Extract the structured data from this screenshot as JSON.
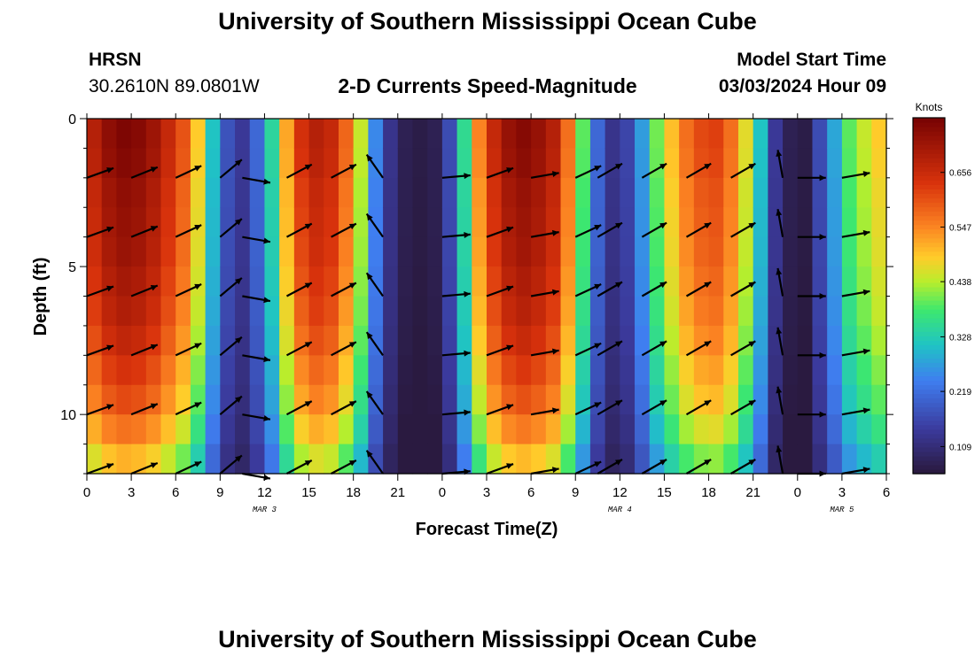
{
  "header": {
    "title": "University of Southern Mississippi Ocean Cube",
    "station": "HRSN",
    "coords": "30.2610N  89.0801W",
    "subtitle": "2-D Currents Speed-Magnitude",
    "start_label": "Model Start Time",
    "start_value": "03/03/2024 Hour 09"
  },
  "footer": {
    "title": "University of Southern Mississippi Ocean Cube"
  },
  "chart_data": {
    "type": "heatmap",
    "title": "2-D Currents Speed-Magnitude",
    "xlabel": "Forecast Time(Z)",
    "ylabel": "Depth (ft)",
    "x_hours_from_mar3_00z": [
      0,
      54
    ],
    "ylim": [
      0,
      12
    ],
    "y_reversed": true,
    "x_tick_labels": [
      "0",
      "3",
      "6",
      "9",
      "12",
      "15",
      "18",
      "21",
      "0",
      "3",
      "6",
      "9",
      "12",
      "15",
      "18",
      "21",
      "0",
      "3",
      "6"
    ],
    "y_ticks": [
      0,
      5,
      10
    ],
    "y_tick_labels": [
      "0",
      "5",
      "10"
    ],
    "date_labels": [
      {
        "hour": 12,
        "text": "MAR 3"
      },
      {
        "hour": 36,
        "text": "MAR 4"
      },
      {
        "hour": 51,
        "text": "MAR 5"
      }
    ],
    "colorbar": {
      "unit": "Knots",
      "min": 0.055,
      "max": 0.765,
      "ticks": [
        0.109,
        0.219,
        0.328,
        0.438,
        0.547,
        0.656
      ],
      "tick_labels": [
        "0.109",
        "0.219",
        "0.328",
        "0.438",
        "0.547",
        "0.656"
      ]
    },
    "speed_profile_knots_by_hour": [
      0.66,
      0.71,
      0.73,
      0.72,
      0.69,
      0.64,
      0.58,
      0.47,
      0.3,
      0.17,
      0.13,
      0.2,
      0.33,
      0.5,
      0.62,
      0.66,
      0.64,
      0.56,
      0.43,
      0.24,
      0.12,
      0.07,
      0.06,
      0.07,
      0.16,
      0.34,
      0.53,
      0.64,
      0.7,
      0.72,
      0.7,
      0.66,
      0.55,
      0.38,
      0.2,
      0.12,
      0.15,
      0.26,
      0.39,
      0.48,
      0.55,
      0.59,
      0.6,
      0.55,
      0.45,
      0.3,
      0.13,
      0.07,
      0.06,
      0.16,
      0.27,
      0.38,
      0.43,
      0.47,
      0.5
    ],
    "depth_speed_factor": [
      1.04,
      1.03,
      1.01,
      1.0,
      0.99,
      0.97,
      0.95,
      0.92,
      0.88,
      0.84,
      0.78,
      0.7,
      0.62
    ],
    "vector_hours": [
      0,
      3,
      6,
      9,
      10.5,
      13.5,
      16.5,
      20,
      24,
      27,
      30,
      33,
      34.5,
      37.5,
      40.5,
      43.5,
      47,
      48,
      51
    ],
    "vector_depths_ft": [
      2,
      4,
      6,
      8,
      10,
      12
    ],
    "vector_angles_deg": [
      -20,
      -22,
      -25,
      -40,
      10,
      -28,
      -28,
      -125,
      -5,
      -20,
      -10,
      -25,
      -30,
      -30,
      -30,
      -30,
      -100,
      0,
      -10
    ]
  }
}
